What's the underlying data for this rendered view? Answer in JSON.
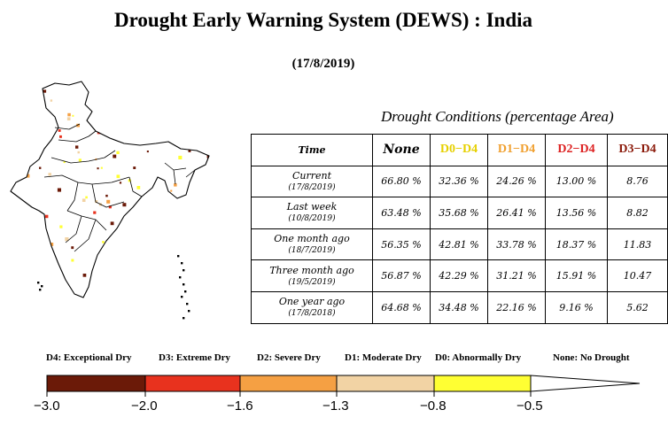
{
  "title": "Drought Early Warning System (DEWS) : India",
  "date": "(17/8/2019)",
  "map": {
    "colors": {
      "exceptional": "#6b1a08",
      "extreme": "#e8321e",
      "severe": "#f5a043",
      "moderate": "#f2d3a4",
      "abnormal": "#ffff33",
      "outline": "#000000"
    }
  },
  "table": {
    "caption": "Drought Conditions (percentage Area)",
    "headers": [
      {
        "label": "Time",
        "color": "#000000"
      },
      {
        "label": "None",
        "color": "#000000"
      },
      {
        "label": "D0−D4",
        "color": "#e6d000"
      },
      {
        "label": "D1−D4",
        "color": "#f0a030"
      },
      {
        "label": "D2−D4",
        "color": "#dd2222"
      },
      {
        "label": "D3−D4",
        "color": "#8b1a0a"
      }
    ],
    "rows": [
      {
        "label": "Current",
        "date": "(17/8/2019)",
        "values": [
          "66.80 %",
          "32.36 %",
          "24.26 %",
          "13.00 %",
          "8.76"
        ]
      },
      {
        "label": "Last week",
        "date": "(10/8/2019)",
        "values": [
          "63.48 %",
          "35.68 %",
          "26.41 %",
          "13.56 %",
          "8.82"
        ]
      },
      {
        "label": "One month ago",
        "date": "(18/7/2019)",
        "values": [
          "56.35 %",
          "42.81 %",
          "33.78 %",
          "18.37 %",
          "11.83"
        ]
      },
      {
        "label": "Three month ago",
        "date": "(19/5/2019)",
        "values": [
          "56.87 %",
          "42.29 %",
          "31.21 %",
          "15.91 %",
          "10.47"
        ]
      },
      {
        "label": "One year ago",
        "date": "(17/8/2018)",
        "values": [
          "64.68 %",
          "34.48 %",
          "22.16 %",
          "9.16 %",
          "5.62"
        ]
      }
    ]
  },
  "legend": {
    "labels": [
      "D4: Exceptional Dry",
      "D3: Extreme Dry",
      "D2: Severe Dry",
      "D1: Moderate Dry",
      "D0: Abnormally Dry",
      "None: No Drought"
    ],
    "segments": [
      {
        "color": "#6b1a08"
      },
      {
        "color": "#e8321e"
      },
      {
        "color": "#f5a043"
      },
      {
        "color": "#f2d3a4"
      },
      {
        "color": "#ffff33"
      },
      {
        "color": "#ffffff"
      }
    ],
    "ticks": [
      "−3.0",
      "−2.0",
      "−1.6",
      "−1.3",
      "−0.8",
      "−0.5"
    ]
  }
}
